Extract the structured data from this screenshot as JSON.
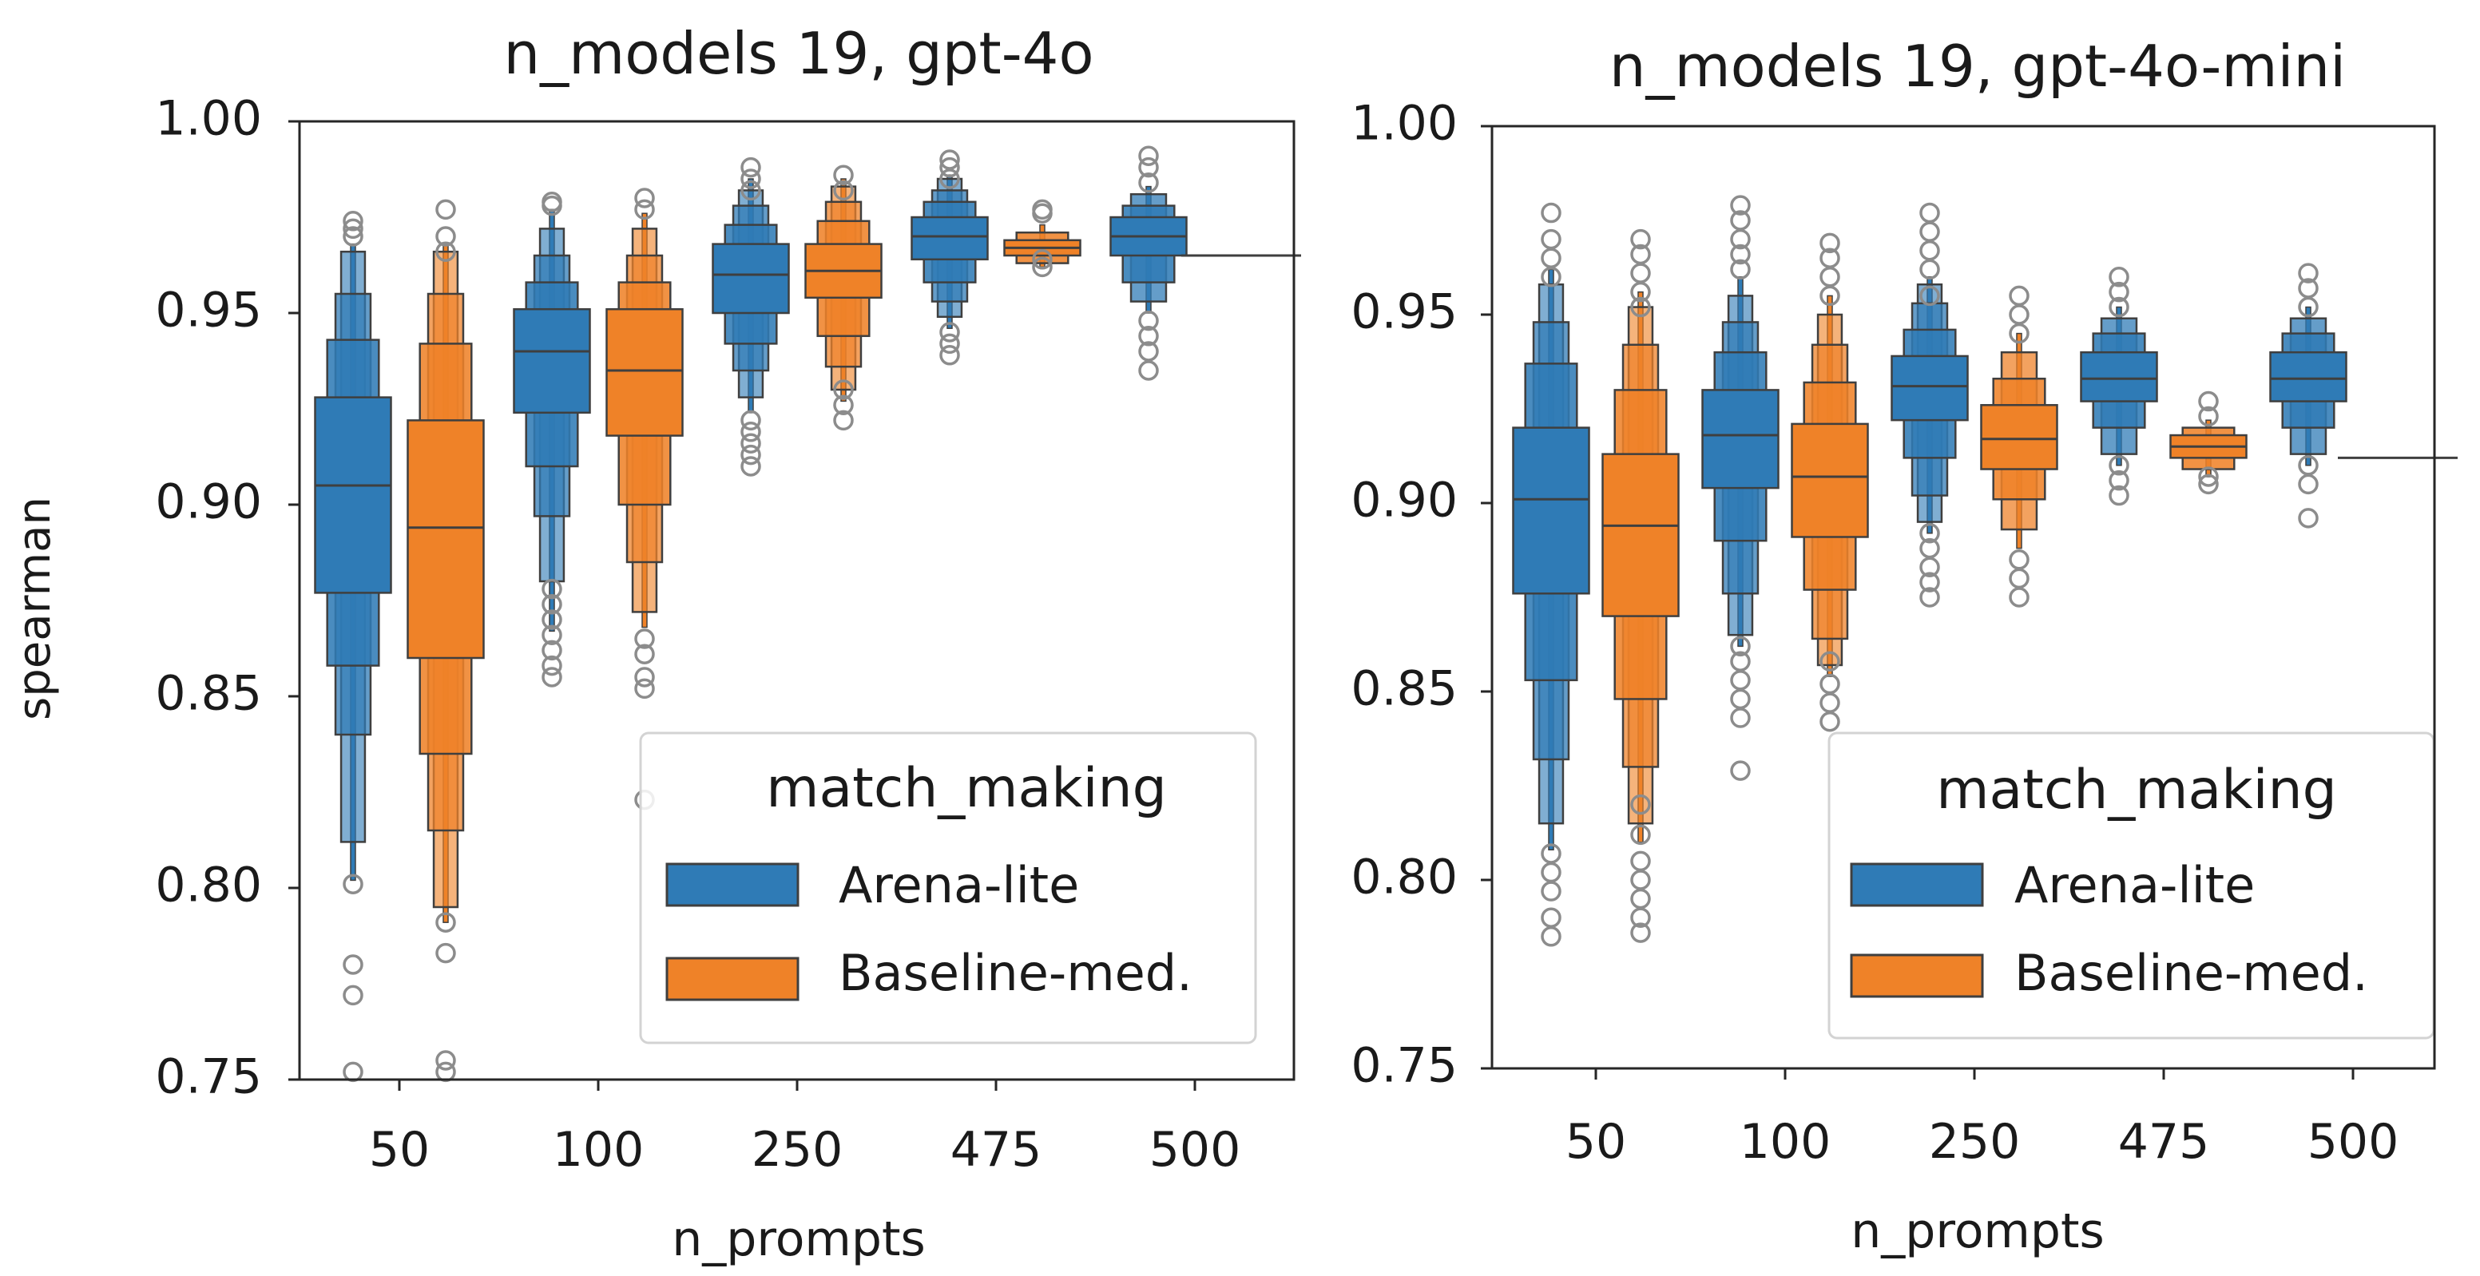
{
  "chart_data": [
    {
      "type": "boxenplot",
      "title": "n_models 19, gpt-4o",
      "xlabel": "n_prompts",
      "ylabel": "spearman",
      "ylim": [
        0.75,
        1.0
      ],
      "yticks": [
        "0.75",
        "0.80",
        "0.85",
        "0.90",
        "0.95",
        "1.00"
      ],
      "categories": [
        "50",
        "100",
        "250",
        "475",
        "500"
      ],
      "legend": {
        "title": "match_making",
        "entries": [
          "Arena-lite",
          "Baseline-med."
        ],
        "position": "lower-right"
      },
      "series": [
        {
          "name": "Arena-lite",
          "color": "#2f7bb6",
          "groups": [
            {
              "median": 0.905,
              "levels": [
                [
                  0.877,
                  0.928
                ],
                [
                  0.858,
                  0.943
                ],
                [
                  0.84,
                  0.955
                ],
                [
                  0.812,
                  0.966
                ]
              ],
              "tail": [
                0.802,
                0.968
              ],
              "outliers": [
                0.801,
                0.78,
                0.772,
                0.752,
                0.97,
                0.972,
                0.974
              ]
            },
            {
              "median": 0.94,
              "levels": [
                [
                  0.924,
                  0.951
                ],
                [
                  0.91,
                  0.958
                ],
                [
                  0.897,
                  0.965
                ],
                [
                  0.88,
                  0.972
                ]
              ],
              "tail": [
                0.867,
                0.977
              ],
              "outliers": [
                0.878,
                0.874,
                0.87,
                0.866,
                0.862,
                0.858,
                0.855,
                0.978,
                0.979
              ]
            },
            {
              "median": 0.96,
              "levels": [
                [
                  0.95,
                  0.968
                ],
                [
                  0.942,
                  0.973
                ],
                [
                  0.935,
                  0.978
                ],
                [
                  0.928,
                  0.982
                ]
              ],
              "tail": [
                0.924,
                0.985
              ],
              "outliers": [
                0.922,
                0.919,
                0.916,
                0.913,
                0.91,
                0.982,
                0.985,
                0.988
              ]
            },
            {
              "median": 0.97,
              "levels": [
                [
                  0.964,
                  0.975
                ],
                [
                  0.958,
                  0.979
                ],
                [
                  0.953,
                  0.982
                ],
                [
                  0.949,
                  0.985
                ]
              ],
              "tail": [
                0.946,
                0.986
              ],
              "outliers": [
                0.945,
                0.942,
                0.939,
                0.985,
                0.988,
                0.99
              ]
            },
            {
              "median": 0.97,
              "levels": [
                [
                  0.965,
                  0.975
                ],
                [
                  0.958,
                  0.978
                ],
                [
                  0.953,
                  0.981
                ]
              ],
              "tail": [
                0.95,
                0.983
              ],
              "outliers": [
                0.948,
                0.944,
                0.94,
                0.935,
                0.984,
                0.988,
                0.991
              ]
            }
          ]
        },
        {
          "name": "Baseline-med.",
          "color": "#ef8228",
          "groups": [
            {
              "median": 0.894,
              "levels": [
                [
                  0.86,
                  0.922
                ],
                [
                  0.835,
                  0.942
                ],
                [
                  0.815,
                  0.955
                ],
                [
                  0.795,
                  0.966
                ]
              ],
              "tail": [
                0.791,
                0.968
              ],
              "outliers": [
                0.791,
                0.783,
                0.755,
                0.752,
                0.966,
                0.97,
                0.977
              ]
            },
            {
              "median": 0.935,
              "levels": [
                [
                  0.918,
                  0.951
                ],
                [
                  0.9,
                  0.958
                ],
                [
                  0.885,
                  0.965
                ],
                [
                  0.872,
                  0.972
                ]
              ],
              "tail": [
                0.868,
                0.976
              ],
              "outliers": [
                0.865,
                0.861,
                0.855,
                0.852,
                0.823,
                0.977,
                0.98
              ]
            },
            {
              "median": 0.961,
              "levels": [
                [
                  0.954,
                  0.968
                ],
                [
                  0.944,
                  0.974
                ],
                [
                  0.936,
                  0.979
                ],
                [
                  0.93,
                  0.983
                ]
              ],
              "tail": [
                0.927,
                0.985
              ],
              "outliers": [
                0.93,
                0.926,
                0.922,
                0.982,
                0.986
              ]
            },
            {
              "median": 0.967,
              "levels": [
                [
                  0.965,
                  0.969
                ],
                [
                  0.963,
                  0.971
                ]
              ],
              "tail": [
                0.962,
                0.973
              ],
              "outliers": [
                0.962,
                0.964,
                0.976,
                0.977
              ]
            },
            {
              "median": 0.965,
              "levels": [],
              "tail": [
                0.965,
                0.965
              ],
              "outliers": []
            }
          ]
        }
      ]
    },
    {
      "type": "boxenplot",
      "title": "n_models 19, gpt-4o-mini",
      "xlabel": "n_prompts",
      "ylabel": "",
      "ylim": [
        0.75,
        1.0
      ],
      "yticks": [
        "0.75",
        "0.80",
        "0.85",
        "0.90",
        "0.95",
        "1.00"
      ],
      "categories": [
        "50",
        "100",
        "250",
        "475",
        "500"
      ],
      "legend": {
        "title": "match_making",
        "entries": [
          "Arena-lite",
          "Baseline-med."
        ],
        "position": "lower-right"
      },
      "series": [
        {
          "name": "Arena-lite",
          "color": "#2f7bb6",
          "groups": [
            {
              "median": 0.901,
              "levels": [
                [
                  0.876,
                  0.92
                ],
                [
                  0.853,
                  0.937
                ],
                [
                  0.832,
                  0.948
                ],
                [
                  0.815,
                  0.958
                ]
              ],
              "tail": [
                0.808,
                0.962
              ],
              "outliers": [
                0.807,
                0.802,
                0.797,
                0.79,
                0.785,
                0.96,
                0.965,
                0.97,
                0.977
              ]
            },
            {
              "median": 0.918,
              "levels": [
                [
                  0.904,
                  0.93
                ],
                [
                  0.89,
                  0.94
                ],
                [
                  0.876,
                  0.948
                ],
                [
                  0.865,
                  0.955
                ]
              ],
              "tail": [
                0.862,
                0.96
              ],
              "outliers": [
                0.862,
                0.858,
                0.853,
                0.848,
                0.843,
                0.829,
                0.962,
                0.966,
                0.97,
                0.975,
                0.979
              ]
            },
            {
              "median": 0.931,
              "levels": [
                [
                  0.922,
                  0.939
                ],
                [
                  0.912,
                  0.946
                ],
                [
                  0.902,
                  0.953
                ],
                [
                  0.895,
                  0.958
                ]
              ],
              "tail": [
                0.892,
                0.96
              ],
              "outliers": [
                0.892,
                0.888,
                0.883,
                0.879,
                0.875,
                0.955,
                0.962,
                0.967,
                0.972,
                0.977
              ]
            },
            {
              "median": 0.933,
              "levels": [
                [
                  0.927,
                  0.94
                ],
                [
                  0.92,
                  0.945
                ],
                [
                  0.913,
                  0.949
                ]
              ],
              "tail": [
                0.91,
                0.952
              ],
              "outliers": [
                0.91,
                0.906,
                0.902,
                0.952,
                0.956,
                0.96
              ]
            },
            {
              "median": 0.933,
              "levels": [
                [
                  0.927,
                  0.94
                ],
                [
                  0.92,
                  0.945
                ],
                [
                  0.913,
                  0.949
                ]
              ],
              "tail": [
                0.91,
                0.952
              ],
              "outliers": [
                0.91,
                0.905,
                0.896,
                0.952,
                0.957,
                0.961
              ]
            }
          ]
        },
        {
          "name": "Baseline-med.",
          "color": "#ef8228",
          "groups": [
            {
              "median": 0.894,
              "levels": [
                [
                  0.87,
                  0.913
                ],
                [
                  0.848,
                  0.93
                ],
                [
                  0.83,
                  0.942
                ],
                [
                  0.815,
                  0.952
                ]
              ],
              "tail": [
                0.81,
                0.956
              ],
              "outliers": [
                0.82,
                0.812,
                0.805,
                0.8,
                0.795,
                0.79,
                0.786,
                0.952,
                0.956,
                0.961,
                0.966,
                0.97
              ]
            },
            {
              "median": 0.907,
              "levels": [
                [
                  0.891,
                  0.921
                ],
                [
                  0.877,
                  0.932
                ],
                [
                  0.864,
                  0.942
                ],
                [
                  0.857,
                  0.95
                ]
              ],
              "tail": [
                0.854,
                0.955
              ],
              "outliers": [
                0.858,
                0.852,
                0.847,
                0.842,
                0.955,
                0.96,
                0.965,
                0.969
              ]
            },
            {
              "median": 0.917,
              "levels": [
                [
                  0.909,
                  0.926
                ],
                [
                  0.901,
                  0.933
                ],
                [
                  0.893,
                  0.94
                ]
              ],
              "tail": [
                0.888,
                0.945
              ],
              "outliers": [
                0.885,
                0.88,
                0.875,
                0.945,
                0.95,
                0.955
              ]
            },
            {
              "median": 0.915,
              "levels": [
                [
                  0.912,
                  0.918
                ],
                [
                  0.909,
                  0.92
                ]
              ],
              "tail": [
                0.907,
                0.922
              ],
              "outliers": [
                0.907,
                0.905,
                0.923,
                0.927
              ]
            },
            {
              "median": 0.912,
              "levels": [],
              "tail": [
                0.912,
                0.912
              ],
              "outliers": []
            }
          ]
        }
      ]
    }
  ]
}
